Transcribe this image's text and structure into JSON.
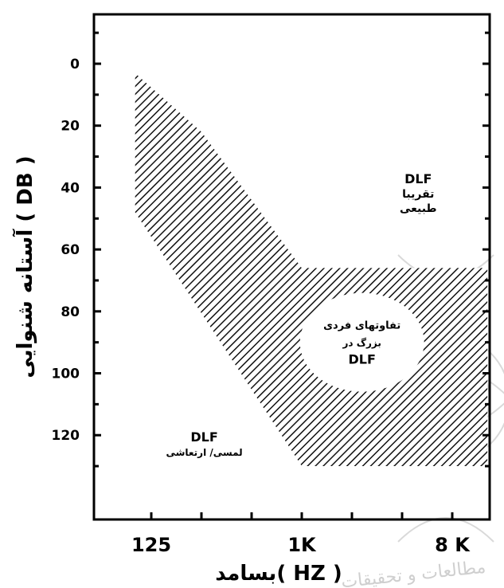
{
  "chart_data": {
    "type": "area",
    "xlabel": "بسامد( HZ )",
    "ylabel": "آستانه شنوایی ( DB )",
    "x_scale": "log",
    "y_inverted": true,
    "ylim": [
      -15,
      145
    ],
    "xlim": [
      60,
      16000
    ],
    "y_ticks": [
      0,
      20,
      40,
      60,
      80,
      100,
      120
    ],
    "x_ticks": [
      {
        "value": 125,
        "label": "125"
      },
      {
        "value": 1000,
        "label": "1K"
      },
      {
        "value": 8000,
        "label": "8 K"
      }
    ],
    "regions": [
      {
        "name": "vibrotactile",
        "pattern": "hatched",
        "points": [
          [
            100,
            3
          ],
          [
            100,
            48
          ],
          [
            1000,
            130
          ],
          [
            13000,
            130
          ],
          [
            13000,
            66
          ],
          [
            1000,
            66
          ],
          [
            250,
            22
          ],
          [
            100,
            3
          ]
        ]
      }
    ],
    "annotations": [
      {
        "id": "normal",
        "lines": [
          "DLF",
          "تقریبا",
          "طبیعی"
        ],
        "x": 5000,
        "y": 42
      },
      {
        "id": "individual",
        "lines": [
          "تفاوتهای فردی",
          "بزرگ در",
          "DLF"
        ],
        "x": 2300,
        "y": 90
      },
      {
        "id": "tactile",
        "lines": [
          "DLF",
          "لمسی/ ارتعاشی"
        ],
        "x": 260,
        "y": 123
      }
    ],
    "watermark": "مطالعات و تحقیقات"
  }
}
